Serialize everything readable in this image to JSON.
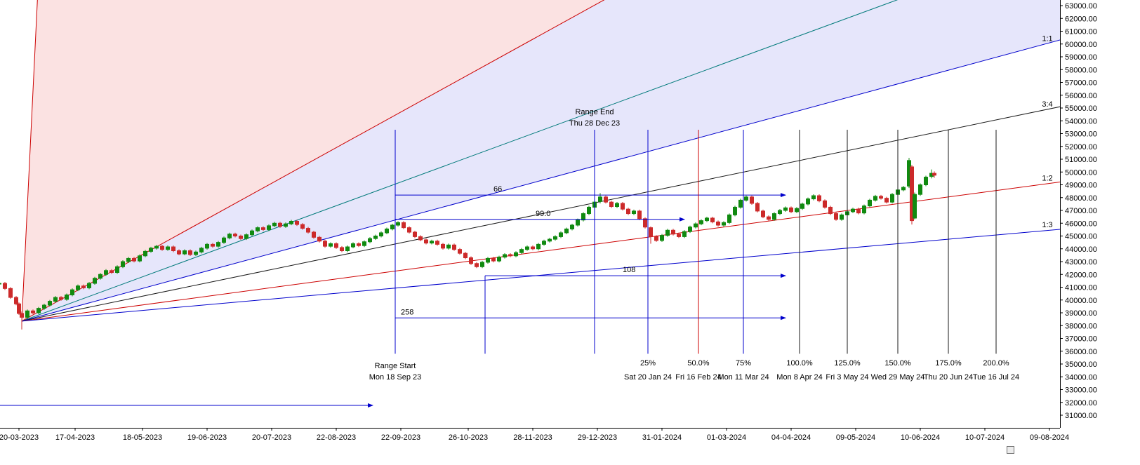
{
  "chart_data": {
    "type": "candlestick",
    "title": "",
    "y_axis": {
      "min": 31000,
      "max": 63000,
      "step": 1000,
      "tick_labels": [
        "63000.00",
        "62000.00",
        "61000.00",
        "60000.00",
        "59000.00",
        "58000.00",
        "57000.00",
        "56000.00",
        "55000.00",
        "54000.00",
        "53000.00",
        "52000.00",
        "51000.00",
        "50000.00",
        "49000.00",
        "48000.00",
        "47000.00",
        "46000.00",
        "45000.00",
        "44000.00",
        "43000.00",
        "42000.00",
        "41000.00",
        "40000.00",
        "39000.00",
        "38000.00",
        "37000.00",
        "36000.00",
        "35000.00",
        "34000.00",
        "33000.00",
        "32000.00",
        "31000.00"
      ]
    },
    "x_axis": {
      "ticks": [
        {
          "label": "20-03-2023",
          "day": 0
        },
        {
          "label": "17-04-2023",
          "day": 20
        },
        {
          "label": "18-05-2023",
          "day": 44
        },
        {
          "label": "19-06-2023",
          "day": 67
        },
        {
          "label": "20-07-2023",
          "day": 90
        },
        {
          "label": "22-08-2023",
          "day": 113
        },
        {
          "label": "22-09-2023",
          "day": 136
        },
        {
          "label": "26-10-2023",
          "day": 160
        },
        {
          "label": "28-11-2023",
          "day": 183
        },
        {
          "label": "29-12-2023",
          "day": 206
        },
        {
          "label": "31-01-2024",
          "day": 229
        },
        {
          "label": "01-03-2024",
          "day": 252
        },
        {
          "label": "04-04-2024",
          "day": 275
        },
        {
          "label": "09-05-2024",
          "day": 298
        },
        {
          "label": "10-06-2024",
          "day": 321
        },
        {
          "label": "10-07-2024",
          "day": 344
        },
        {
          "label": "09-08-2024",
          "day": 367
        }
      ]
    },
    "gann_fan": {
      "origin": {
        "day": 1,
        "price": 38350
      },
      "lines": [
        {
          "label": "",
          "color": "red",
          "slope": 4500
        },
        {
          "label": "",
          "color": "red",
          "slope": 121
        },
        {
          "label": "",
          "color": "teal",
          "slope": 80.5
        },
        {
          "label": "1:1",
          "color": "blue",
          "slope": 59.4
        },
        {
          "label": "3:4",
          "color": "black",
          "slope": 45.3
        },
        {
          "label": "1:2",
          "color": "red",
          "slope": 29.4
        },
        {
          "label": "1:3",
          "color": "blue",
          "slope": 19.4
        }
      ],
      "fills": [
        {
          "upper_slope": 4500,
          "lower_slope": 121,
          "color": "rgba(242,160,160,0.30)"
        },
        {
          "upper_slope": 121,
          "lower_slope": 59.4,
          "color": "rgba(165,165,240,0.28)"
        }
      ]
    },
    "range_markers": {
      "start": {
        "title": "Range Start",
        "date": "Mon 18 Sep 23",
        "day": 134
      },
      "end": {
        "title": "Range End",
        "date": "Thu 28 Dec 23",
        "day": 205
      }
    },
    "percent_lines": [
      {
        "percent": "25%",
        "date": "Sat 20 Jan 24",
        "day": 224,
        "color": "blue"
      },
      {
        "percent": "50.0%",
        "date": "Fri 16 Feb 24",
        "day": 242,
        "color": "red"
      },
      {
        "percent": "75%",
        "date": "Mon 11 Mar 24",
        "day": 258,
        "color": "blue"
      },
      {
        "percent": "100.0%",
        "date": "Mon 8 Apr 24",
        "day": 278,
        "color": "black"
      },
      {
        "percent": "125.0%",
        "date": "Fri 3 May 24",
        "day": 295,
        "color": "black"
      },
      {
        "percent": "150.0%",
        "date": "Wed 29 May 24",
        "day": 313,
        "color": "black"
      },
      {
        "percent": "175.0%",
        "date": "Thu 20 Jun 24",
        "day": 331,
        "color": "black"
      },
      {
        "percent": "200.0%",
        "date": "Tue 16 Jul 24",
        "day": 348,
        "color": "black"
      }
    ],
    "vertical_span": {
      "price_top": 53300,
      "price_bottom": 35800
    },
    "extra_vertical": {
      "day": 166,
      "price_top": 41900,
      "price_bottom": 35800,
      "color": "blue"
    },
    "arrows": [
      {
        "label": "66",
        "price": 48200,
        "from_day": 134,
        "to_day": 273,
        "label_day": 169
      },
      {
        "label": "99.0",
        "price": 46300,
        "from_day": 134,
        "to_day": 237,
        "label_day": 184
      },
      {
        "label": "108",
        "price": 41900,
        "from_day": 166,
        "to_day": 273,
        "label_day": 215
      },
      {
        "label": "258",
        "price": 38600,
        "from_day": 134,
        "to_day": 273,
        "label_day": 136
      },
      {
        "label": "",
        "price": 31770,
        "from_day": -7,
        "to_day": 126,
        "label_day": 0
      }
    ],
    "candles": [
      [
        -7,
        41300
      ],
      [
        -5,
        40900
      ],
      [
        -3,
        40200
      ],
      [
        -1,
        39700
      ],
      [
        0,
        38950
      ],
      [
        1,
        38950,
        39100,
        37700,
        38650
      ],
      [
        3,
        39150
      ],
      [
        5,
        39000
      ],
      [
        7,
        39350
      ],
      [
        9,
        39600
      ],
      [
        11,
        39900
      ],
      [
        13,
        40200
      ],
      [
        15,
        40050
      ],
      [
        17,
        40400
      ],
      [
        19,
        40800
      ],
      [
        21,
        41100
      ],
      [
        23,
        40950
      ],
      [
        25,
        41300
      ],
      [
        27,
        41700
      ],
      [
        29,
        42000
      ],
      [
        31,
        42300
      ],
      [
        33,
        42150
      ],
      [
        35,
        42600
      ],
      [
        37,
        43000
      ],
      [
        39,
        43250
      ],
      [
        41,
        43050
      ],
      [
        43,
        43450
      ],
      [
        45,
        43800
      ],
      [
        47,
        44050
      ],
      [
        49,
        44200
      ],
      [
        51,
        43950
      ],
      [
        53,
        44150
      ],
      [
        55,
        43850
      ],
      [
        57,
        43600
      ],
      [
        59,
        43850
      ],
      [
        61,
        43550
      ],
      [
        63,
        43750
      ],
      [
        65,
        44050
      ],
      [
        67,
        44350
      ],
      [
        69,
        44200
      ],
      [
        71,
        44500
      ],
      [
        73,
        44850
      ],
      [
        75,
        45150
      ],
      [
        77,
        45000
      ],
      [
        79,
        44800
      ],
      [
        81,
        45100
      ],
      [
        83,
        45400
      ],
      [
        85,
        45650
      ],
      [
        87,
        45500
      ],
      [
        89,
        45800
      ],
      [
        91,
        46000
      ],
      [
        93,
        45750
      ],
      [
        95,
        45950
      ],
      [
        97,
        46150
      ],
      [
        99,
        45900
      ],
      [
        101,
        45600
      ],
      [
        103,
        45300
      ],
      [
        105,
        44900
      ],
      [
        107,
        44600
      ],
      [
        109,
        44200
      ],
      [
        111,
        44400
      ],
      [
        113,
        44100
      ],
      [
        115,
        43850
      ],
      [
        117,
        44150
      ],
      [
        119,
        44400
      ],
      [
        121,
        44250
      ],
      [
        123,
        44550
      ],
      [
        125,
        44800
      ],
      [
        127,
        45000
      ],
      [
        129,
        45250
      ],
      [
        131,
        45550
      ],
      [
        133,
        45850
      ],
      [
        135,
        46050
      ],
      [
        137,
        45650
      ],
      [
        139,
        45300
      ],
      [
        141,
        44950
      ],
      [
        143,
        44700
      ],
      [
        145,
        44450
      ],
      [
        147,
        44600
      ],
      [
        149,
        44350
      ],
      [
        151,
        44050
      ],
      [
        153,
        44300
      ],
      [
        155,
        43950
      ],
      [
        157,
        43650
      ],
      [
        159,
        43300
      ],
      [
        161,
        42850
      ],
      [
        163,
        42600
      ],
      [
        165,
        42950
      ],
      [
        167,
        43250
      ],
      [
        169,
        43050
      ],
      [
        171,
        43350
      ],
      [
        173,
        43550
      ],
      [
        175,
        43450
      ],
      [
        177,
        43700
      ],
      [
        179,
        43950
      ],
      [
        181,
        44150
      ],
      [
        183,
        44000
      ],
      [
        185,
        44350
      ],
      [
        187,
        44600
      ],
      [
        189,
        44750
      ],
      [
        191,
        44950
      ],
      [
        193,
        45250
      ],
      [
        195,
        45550
      ],
      [
        197,
        45850
      ],
      [
        199,
        46250
      ],
      [
        201,
        46750
      ],
      [
        203,
        47250
      ],
      [
        205,
        47650
      ],
      [
        207,
        47700,
        48350,
        47550,
        48050
      ],
      [
        209,
        47650
      ],
      [
        211,
        47300
      ],
      [
        213,
        47550
      ],
      [
        215,
        47100
      ],
      [
        217,
        46750
      ],
      [
        219,
        46950
      ],
      [
        221,
        46350
      ],
      [
        223,
        45700
      ],
      [
        225,
        45650,
        45750,
        44400,
        44950
      ],
      [
        227,
        44650
      ],
      [
        229,
        45050
      ],
      [
        231,
        45450
      ],
      [
        233,
        45150
      ],
      [
        235,
        44950
      ],
      [
        237,
        45350
      ],
      [
        239,
        45700
      ],
      [
        241,
        45950
      ],
      [
        243,
        46200
      ],
      [
        245,
        46400
      ],
      [
        247,
        46100
      ],
      [
        249,
        45850
      ],
      [
        251,
        46050
      ],
      [
        253,
        46650
      ],
      [
        255,
        47250
      ],
      [
        257,
        47800
      ],
      [
        259,
        48050
      ],
      [
        261,
        47550
      ],
      [
        263,
        46950
      ],
      [
        265,
        46500
      ],
      [
        267,
        46300
      ],
      [
        269,
        46750
      ],
      [
        271,
        47000
      ],
      [
        273,
        47200
      ],
      [
        275,
        46900
      ],
      [
        277,
        47150
      ],
      [
        279,
        47500
      ],
      [
        281,
        47900
      ],
      [
        283,
        48150
      ],
      [
        285,
        47750
      ],
      [
        287,
        47250
      ],
      [
        289,
        46750
      ],
      [
        291,
        46300
      ],
      [
        293,
        46650
      ],
      [
        295,
        46900
      ],
      [
        297,
        47100
      ],
      [
        299,
        46800
      ],
      [
        301,
        47350
      ],
      [
        303,
        47800
      ],
      [
        305,
        48100
      ],
      [
        307,
        47950
      ],
      [
        309,
        47650
      ],
      [
        311,
        48250
      ],
      [
        313,
        48600
      ],
      [
        315,
        48800
      ],
      [
        317,
        48900,
        51100,
        48750,
        50900
      ],
      [
        318,
        50400,
        50550,
        45900,
        46200
      ],
      [
        319,
        46400,
        48400,
        46300,
        48250
      ],
      [
        321,
        49000
      ],
      [
        323,
        49600
      ],
      [
        325,
        49650,
        50200,
        49500,
        49900
      ],
      [
        326,
        49900,
        50050,
        49550,
        49750
      ]
    ],
    "colors": {
      "up": "#108a10",
      "down": "#cc2a2a",
      "blue": "#0000cc",
      "red": "#cc0000",
      "teal": "#007a7a",
      "black": "#1a1a1a"
    }
  }
}
